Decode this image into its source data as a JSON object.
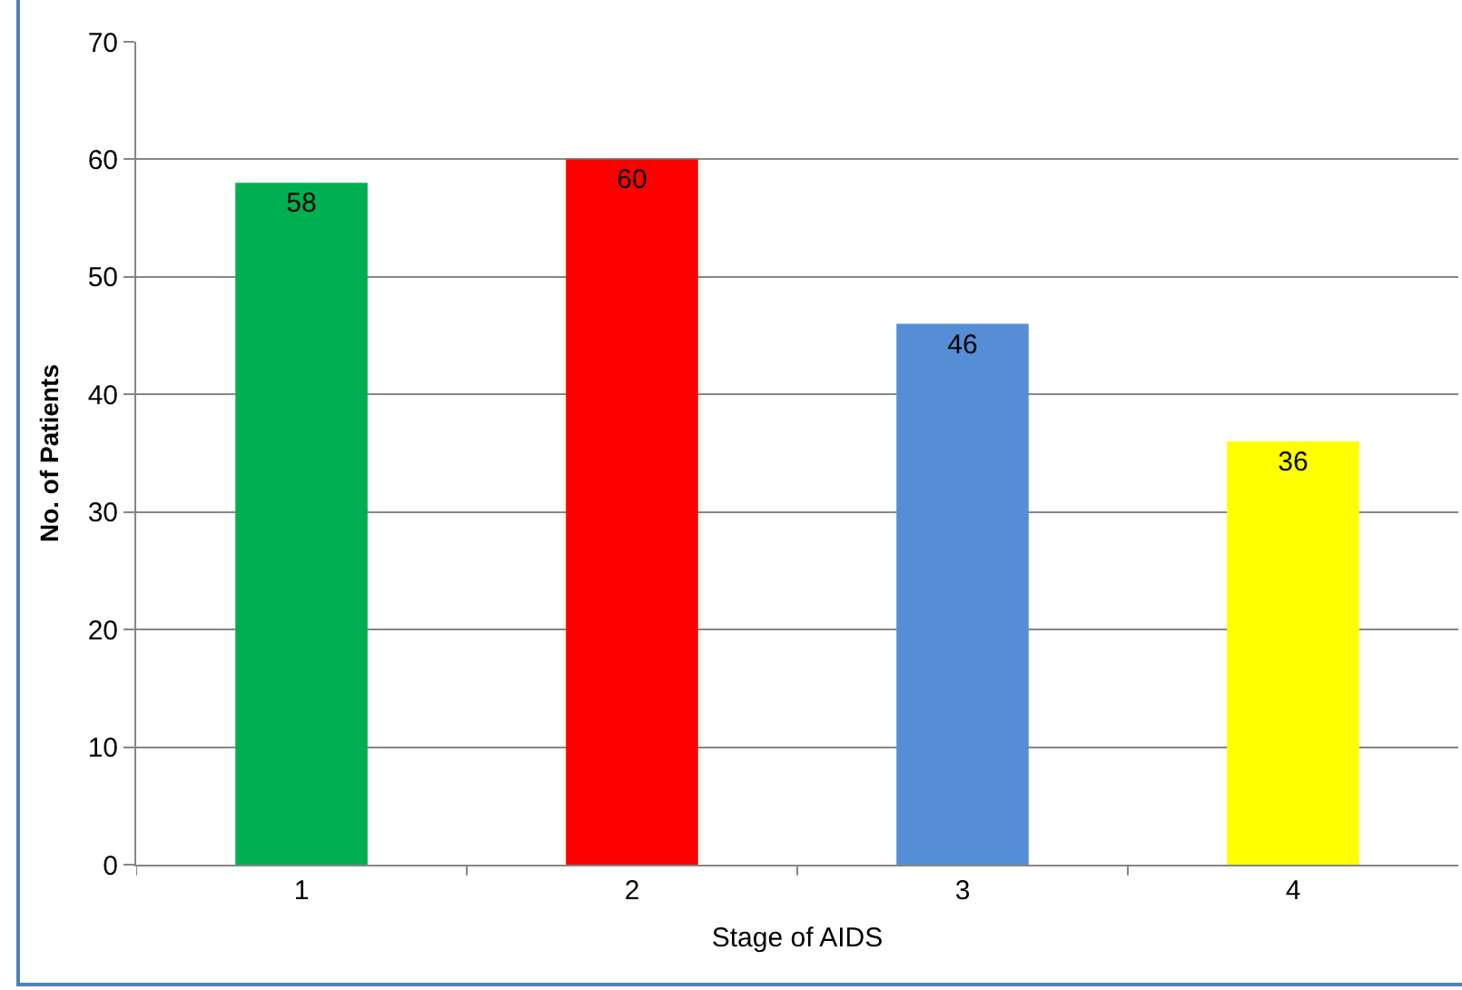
{
  "chart_data": {
    "type": "bar",
    "xlabel": "Stage of AIDS",
    "ylabel": "No. of Patients",
    "categories": [
      "1",
      "2",
      "3",
      "4"
    ],
    "values": [
      58,
      60,
      46,
      36
    ],
    "colors": [
      "#00b050",
      "#ff0000",
      "#558ed5",
      "#ffff00"
    ],
    "ylim": [
      0,
      70
    ],
    "yticks": [
      0,
      10,
      20,
      30,
      40,
      50,
      60,
      70
    ],
    "grid": "y",
    "data_labels": true
  }
}
